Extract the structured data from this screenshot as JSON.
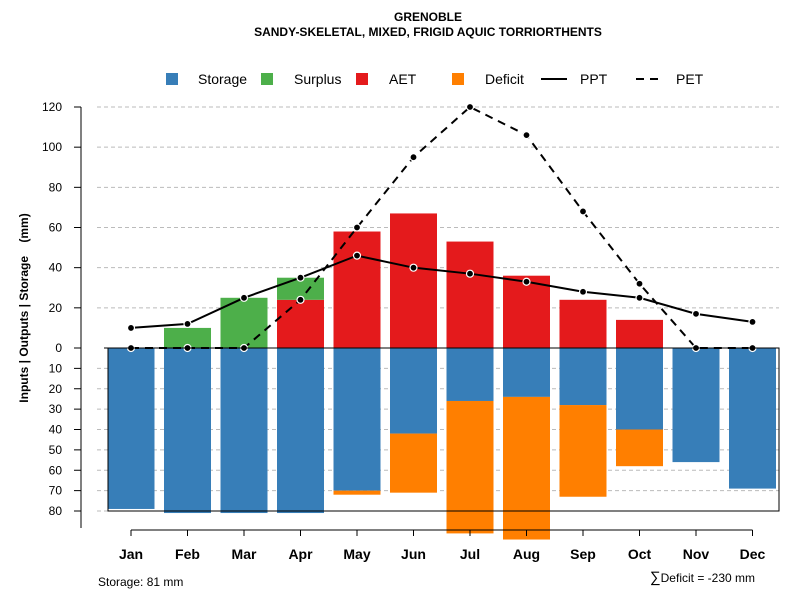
{
  "chart_data": {
    "type": "bar",
    "title": "GRENOBLE",
    "subtitle": "SANDY-SKELETAL, MIXED, FRIGID AQUIC TORRIORTHENTS",
    "ylabel": "Inputs | Outputs | Storage    (mm)",
    "categories": [
      "Jan",
      "Feb",
      "Mar",
      "Apr",
      "May",
      "Jun",
      "Jul",
      "Aug",
      "Sep",
      "Oct",
      "Nov",
      "Dec"
    ],
    "ylim_upper": [
      0,
      120
    ],
    "ylim_lower": [
      0,
      80
    ],
    "yticks_upper": [
      "0",
      "20",
      "40",
      "60",
      "80",
      "100",
      "120"
    ],
    "yticks_lower": [
      "10",
      "20",
      "30",
      "40",
      "50",
      "60",
      "70",
      "80"
    ],
    "colors": {
      "storage": "#377EB8",
      "surplus": "#4DAF4A",
      "aet": "#E41A1C",
      "deficit": "#FF7F00",
      "grid": "#BBBBBB",
      "line": "#000000"
    },
    "series": [
      {
        "key": "storage",
        "name": "Storage",
        "values": [
          79,
          81,
          81,
          81,
          70,
          42,
          26,
          24,
          28,
          40,
          56,
          69
        ]
      },
      {
        "key": "surplus",
        "name": "Surplus",
        "values": [
          0,
          10,
          25,
          11,
          0,
          0,
          0,
          0,
          0,
          0,
          0,
          0
        ]
      },
      {
        "key": "aet",
        "name": "AET",
        "values": [
          0,
          0,
          0,
          24,
          58,
          67,
          53,
          36,
          24,
          14,
          0,
          0
        ]
      },
      {
        "key": "deficit",
        "name": "Deficit",
        "values": [
          0,
          0,
          0,
          0,
          2,
          29,
          65,
          70,
          45,
          18,
          0,
          0
        ]
      },
      {
        "key": "ppt",
        "name": "PPT",
        "values": [
          10,
          12,
          25,
          35,
          46,
          40,
          37,
          33,
          28,
          25,
          17,
          13
        ]
      },
      {
        "key": "pet",
        "name": "PET",
        "values": [
          0,
          0,
          0,
          24,
          60,
          95,
          120,
          106,
          68,
          32,
          0,
          0
        ]
      }
    ],
    "legend_position": "top",
    "footer_left": "Storage: 81 mm",
    "footer_right_symbol": "∑",
    "footer_right": "Deficit = -230 mm"
  }
}
